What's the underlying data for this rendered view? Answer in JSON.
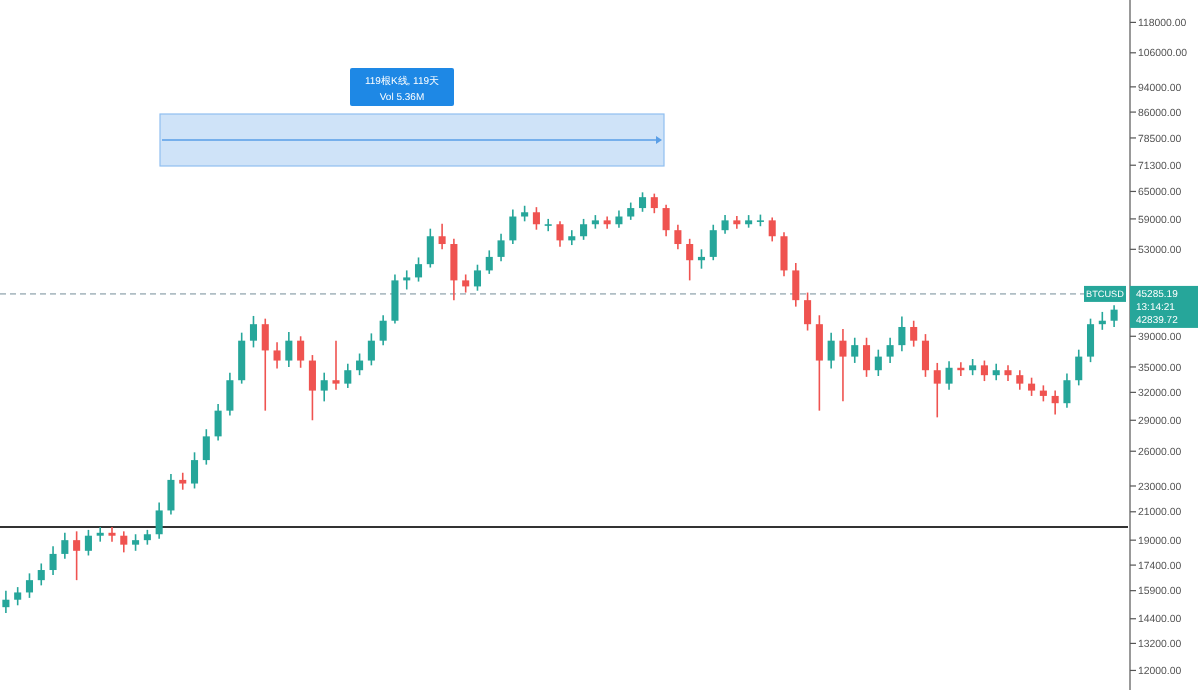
{
  "chart_data": {
    "type": "candlestick",
    "log": true,
    "tick_labels": "y",
    "grid": false,
    "categories": [
      null,
      null,
      null,
      null,
      null,
      null,
      null,
      null,
      null,
      null,
      null,
      null,
      null,
      null,
      null,
      null,
      null,
      null,
      null,
      null,
      null,
      null,
      null,
      null,
      null,
      null,
      null,
      null,
      null,
      null,
      null,
      null,
      null,
      null,
      null,
      null,
      null,
      null,
      null,
      null,
      null,
      null,
      null,
      null,
      null,
      null,
      null,
      null,
      null,
      null,
      null,
      null,
      null,
      null,
      null,
      null,
      null,
      null,
      null,
      null,
      null,
      null,
      null,
      null,
      null,
      null,
      null,
      null,
      null,
      null,
      null,
      null,
      null,
      null,
      null,
      null,
      null,
      null,
      null,
      null,
      null,
      null,
      null,
      null,
      null,
      null,
      null,
      null,
      null,
      null,
      null,
      null,
      null,
      null,
      null
    ],
    "ohlc": [
      [
        15000,
        15900,
        14700,
        15400
      ],
      [
        15400,
        16100,
        15100,
        15800
      ],
      [
        15800,
        16900,
        15500,
        16500
      ],
      [
        16500,
        17500,
        16200,
        17100
      ],
      [
        17100,
        18600,
        16800,
        18100
      ],
      [
        18100,
        19500,
        17800,
        19000
      ],
      [
        19000,
        19600,
        16500,
        18300
      ],
      [
        18300,
        19700,
        18000,
        19300
      ],
      [
        19300,
        19900,
        18900,
        19500
      ],
      [
        19500,
        19900,
        18900,
        19300
      ],
      [
        19300,
        19600,
        18200,
        18700
      ],
      [
        18700,
        19400,
        18300,
        19000
      ],
      [
        19000,
        19700,
        18700,
        19400
      ],
      [
        19400,
        21700,
        19100,
        21100
      ],
      [
        21100,
        24000,
        20800,
        23500
      ],
      [
        23500,
        24100,
        22700,
        23200
      ],
      [
        23200,
        25900,
        22800,
        25200
      ],
      [
        25200,
        28100,
        24800,
        27400
      ],
      [
        27400,
        30700,
        27000,
        30000
      ],
      [
        30000,
        34300,
        29500,
        33400
      ],
      [
        33400,
        39500,
        33000,
        38400
      ],
      [
        38400,
        41900,
        37500,
        40700
      ],
      [
        40700,
        41500,
        30000,
        37100
      ],
      [
        37100,
        38200,
        34800,
        35800
      ],
      [
        35800,
        39600,
        35000,
        38400
      ],
      [
        38400,
        39000,
        34900,
        35800
      ],
      [
        35800,
        36500,
        29000,
        32200
      ],
      [
        32200,
        34300,
        31000,
        33400
      ],
      [
        33400,
        38400,
        32300,
        33000
      ],
      [
        33000,
        35400,
        32500,
        34600
      ],
      [
        34600,
        36700,
        34000,
        35800
      ],
      [
        35800,
        39400,
        35200,
        38400
      ],
      [
        38400,
        42000,
        37800,
        41200
      ],
      [
        41200,
        48500,
        40800,
        47500
      ],
      [
        47500,
        49200,
        46000,
        48000
      ],
      [
        48000,
        51500,
        47300,
        50300
      ],
      [
        50300,
        57000,
        49700,
        55500
      ],
      [
        55500,
        58000,
        53000,
        54000
      ],
      [
        54000,
        55000,
        44300,
        47500
      ],
      [
        47500,
        48500,
        45500,
        46500
      ],
      [
        46500,
        50200,
        45800,
        49200
      ],
      [
        49200,
        52800,
        48600,
        51600
      ],
      [
        51600,
        56000,
        50800,
        54700
      ],
      [
        54700,
        61000,
        54000,
        59500
      ],
      [
        59500,
        61800,
        58500,
        60400
      ],
      [
        60400,
        61500,
        56800,
        57900
      ],
      [
        57900,
        59000,
        56500,
        57900
      ],
      [
        57900,
        58500,
        53500,
        54700
      ],
      [
        54700,
        56700,
        53800,
        55500
      ],
      [
        55500,
        59000,
        54800,
        57900
      ],
      [
        57900,
        59800,
        57000,
        58700
      ],
      [
        58700,
        59500,
        57000,
        57900
      ],
      [
        57900,
        60800,
        57200,
        59500
      ],
      [
        59500,
        62500,
        58800,
        61300
      ],
      [
        61300,
        64800,
        60500,
        63700
      ],
      [
        63700,
        64500,
        60200,
        61300
      ],
      [
        61300,
        62000,
        55500,
        56700
      ],
      [
        56700,
        57800,
        53000,
        54000
      ],
      [
        54000,
        55000,
        47500,
        51000
      ],
      [
        51000,
        53000,
        49500,
        51600
      ],
      [
        51600,
        57800,
        51000,
        56700
      ],
      [
        56700,
        59800,
        56000,
        58700
      ],
      [
        58700,
        59600,
        57000,
        57900
      ],
      [
        57900,
        59800,
        57200,
        58700
      ],
      [
        58700,
        59900,
        57500,
        58700
      ],
      [
        58700,
        59300,
        54500,
        55500
      ],
      [
        55500,
        56300,
        48200,
        49200
      ],
      [
        49200,
        50500,
        43300,
        44300
      ],
      [
        44300,
        45500,
        39800,
        40700
      ],
      [
        40700,
        42000,
        30000,
        35800
      ],
      [
        35800,
        39500,
        34800,
        38400
      ],
      [
        38400,
        40000,
        31000,
        36300
      ],
      [
        36300,
        38800,
        35500,
        37800
      ],
      [
        37800,
        38800,
        33800,
        34600
      ],
      [
        34600,
        37200,
        33900,
        36300
      ],
      [
        36300,
        38800,
        35500,
        37800
      ],
      [
        37800,
        41800,
        37000,
        40300
      ],
      [
        40300,
        41200,
        37600,
        38400
      ],
      [
        38400,
        39300,
        33800,
        34600
      ],
      [
        34600,
        35500,
        29300,
        33000
      ],
      [
        33000,
        35700,
        32300,
        34900
      ],
      [
        34900,
        35600,
        33900,
        34600
      ],
      [
        34600,
        36000,
        34000,
        35200
      ],
      [
        35200,
        35800,
        33300,
        34000
      ],
      [
        34000,
        35400,
        33400,
        34600
      ],
      [
        34600,
        35200,
        33300,
        34000
      ],
      [
        34000,
        34600,
        32300,
        33000
      ],
      [
        33000,
        33700,
        31600,
        32200
      ],
      [
        32200,
        32800,
        31000,
        31600
      ],
      [
        31600,
        32200,
        29600,
        30800
      ],
      [
        30800,
        34200,
        30300,
        33400
      ],
      [
        33400,
        37200,
        32800,
        36300
      ],
      [
        36300,
        41500,
        35600,
        40700
      ],
      [
        40700,
        42500,
        39900,
        41200
      ],
      [
        41200,
        43500,
        40300,
        42839.72
      ]
    ],
    "ylim": [
      11200,
      127700
    ],
    "yticks": [
      {
        "value": 12000,
        "label": "12000.00"
      },
      {
        "value": 13200,
        "label": "13200.00"
      },
      {
        "value": 14400,
        "label": "14400.00"
      },
      {
        "value": 15900,
        "label": "15900.00"
      },
      {
        "value": 17400,
        "label": "17400.00"
      },
      {
        "value": 19000,
        "label": "19000.00"
      },
      {
        "value": 21000,
        "label": "21000.00"
      },
      {
        "value": 23000,
        "label": "23000.00"
      },
      {
        "value": 26000,
        "label": "26000.00"
      },
      {
        "value": 29000,
        "label": "29000.00"
      },
      {
        "value": 32000,
        "label": "32000.00"
      },
      {
        "value": 35000,
        "label": "35000.00"
      },
      {
        "value": 39000,
        "label": "39000.00"
      },
      {
        "value": 53000,
        "label": "53000.00"
      },
      {
        "value": 59000,
        "label": "59000.00"
      },
      {
        "value": 65000,
        "label": "65000.00"
      },
      {
        "value": 71300,
        "label": "71300.00"
      },
      {
        "value": 78500,
        "label": "78500.00"
      },
      {
        "value": 86000,
        "label": "86000.00"
      },
      {
        "value": 94000,
        "label": "94000.00"
      },
      {
        "value": 106000,
        "label": "106000.00"
      },
      {
        "value": 118000,
        "label": "118000.00"
      }
    ],
    "ref_lines": [
      {
        "axis": "y",
        "value": 45285.19,
        "label": "45285.19",
        "line_style": "dashed",
        "color": "#b0bec5"
      },
      {
        "axis": "y",
        "value": 19900,
        "color": "#333333",
        "line_style": "solid"
      }
    ],
    "annotations": [
      "119根K线, 119天",
      "Vol 5.36M",
      "BTCUSD",
      "13:14:21",
      "42839.72"
    ]
  }
}
